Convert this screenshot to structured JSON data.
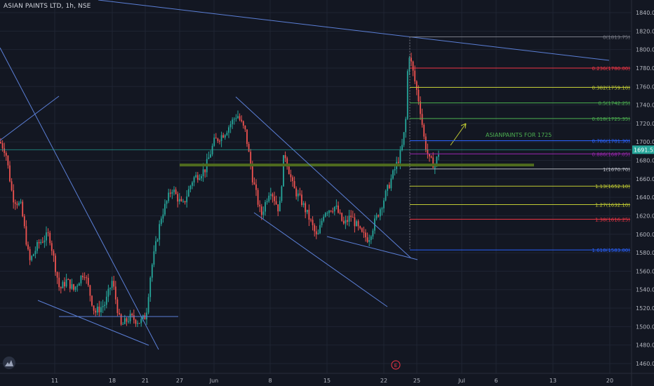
{
  "header": {
    "title": "ASIAN PAINTS LTD, 1h, NSE"
  },
  "price_tag": "1691.55",
  "earnings_marker": "E",
  "colors": {
    "background": "#131722",
    "grid": "#1f2433",
    "candle_up": "#26a69a",
    "candle_down": "#ef5350",
    "trendline": "#5b7fd6",
    "support_zone": "#4f6b1e",
    "annotation": "#4caf50",
    "price_line": "#26a69a"
  },
  "chart_data": {
    "type": "candlestick",
    "title": "ASIAN PAINTS LTD, 1h, NSE",
    "x_ticks": [
      "11",
      "18",
      "21",
      "27",
      "Jun",
      "8",
      "15",
      "22",
      "25",
      "Jul",
      "6",
      "13",
      "20"
    ],
    "y_ticks": [
      1460,
      1480,
      1500,
      1520,
      1540,
      1560,
      1580,
      1600,
      1620,
      1640,
      1660,
      1680,
      1700,
      1720,
      1740,
      1760,
      1780,
      1800,
      1820,
      1840
    ],
    "ylim": [
      1450,
      1855
    ],
    "price_anchor": [
      [
        0,
        1700
      ],
      [
        8,
        1690
      ],
      [
        18,
        1640
      ],
      [
        30,
        1630
      ],
      [
        42,
        1570
      ],
      [
        55,
        1590
      ],
      [
        70,
        1600
      ],
      [
        85,
        1540
      ],
      [
        95,
        1550
      ],
      [
        105,
        1540
      ],
      [
        120,
        1560
      ],
      [
        135,
        1515
      ],
      [
        150,
        1525
      ],
      [
        160,
        1550
      ],
      [
        172,
        1500
      ],
      [
        185,
        1510
      ],
      [
        200,
        1505
      ],
      [
        208,
        1512
      ],
      [
        215,
        1560
      ],
      [
        230,
        1620
      ],
      [
        245,
        1650
      ],
      [
        260,
        1630
      ],
      [
        275,
        1660
      ],
      [
        292,
        1670
      ],
      [
        305,
        1700
      ],
      [
        320,
        1710
      ],
      [
        338,
        1730
      ],
      [
        350,
        1710
      ],
      [
        360,
        1660
      ],
      [
        372,
        1620
      ],
      [
        385,
        1650
      ],
      [
        398,
        1625
      ],
      [
        405,
        1690
      ],
      [
        418,
        1650
      ],
      [
        430,
        1635
      ],
      [
        442,
        1615
      ],
      [
        452,
        1595
      ],
      [
        462,
        1625
      ],
      [
        478,
        1630
      ],
      [
        490,
        1610
      ],
      [
        500,
        1620
      ],
      [
        515,
        1600
      ],
      [
        525,
        1595
      ],
      [
        535,
        1615
      ],
      [
        548,
        1640
      ],
      [
        560,
        1665
      ],
      [
        572,
        1690
      ],
      [
        578,
        1720
      ],
      [
        582,
        1800
      ],
      [
        590,
        1770
      ],
      [
        598,
        1740
      ],
      [
        605,
        1700
      ],
      [
        612,
        1680
      ],
      [
        620,
        1675
      ],
      [
        626,
        1691
      ]
    ],
    "fibonacci_levels": [
      {
        "label": "0(1813.75)",
        "price": 1813.75,
        "color": "#787b86"
      },
      {
        "label": "0.236(1780.00)",
        "price": 1780.0,
        "color": "#f23645"
      },
      {
        "label": "0.382(1759.10)",
        "price": 1759.1,
        "color": "#c0ca33"
      },
      {
        "label": "0.5(1742.25)",
        "price": 1742.25,
        "color": "#4caf50"
      },
      {
        "label": "0.618(1725.35)",
        "price": 1725.35,
        "color": "#4caf50"
      },
      {
        "label": "0.786(1701.30)",
        "price": 1701.3,
        "color": "#2962ff"
      },
      {
        "label": "0.886(1687.05)",
        "price": 1687.05,
        "color": "#9c27b0"
      },
      {
        "label": "1(1670.70)",
        "price": 1670.7,
        "color": "#b2b5be"
      },
      {
        "label": "1.13(1652.10)",
        "price": 1652.1,
        "color": "#c0ca33"
      },
      {
        "label": "1.27(1632.10)",
        "price": 1632.1,
        "color": "#c0ca33"
      },
      {
        "label": "1.38(1616.25)",
        "price": 1616.25,
        "color": "#f23645"
      },
      {
        "label": "1.618(1583.00)",
        "price": 1583.0,
        "color": "#2962ff"
      }
    ],
    "support_zone_price": 1675,
    "annotation": "ASIANPAINTS FOR 1725",
    "current_price": 1691.55
  }
}
